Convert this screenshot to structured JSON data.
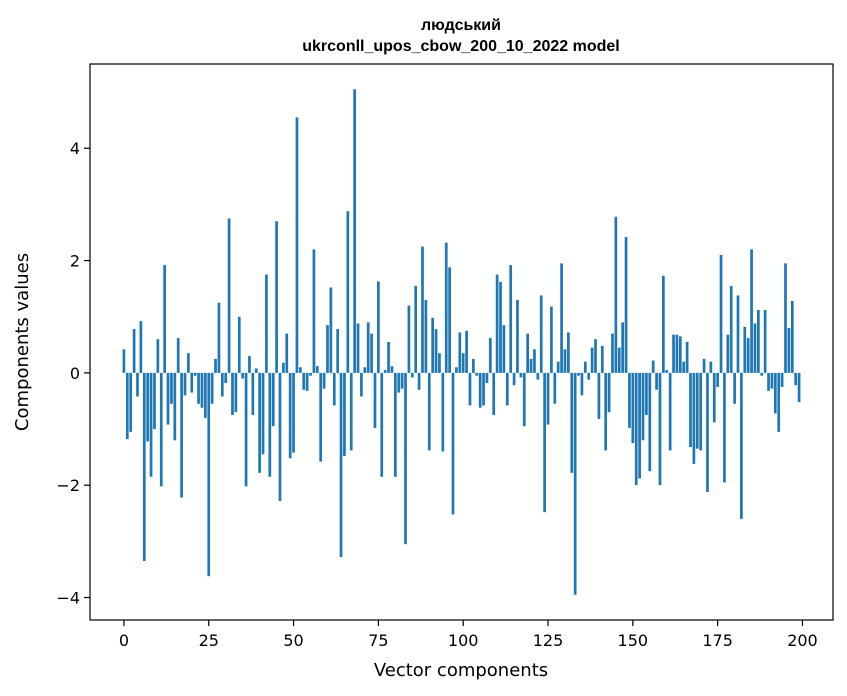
{
  "chart_data": {
    "type": "bar",
    "title_line1": "людський",
    "title_line2": "ukrconll_upos_cbow_200_10_2022 model",
    "xlabel": "Vector components",
    "ylabel": "Components values",
    "xlim": [
      -10,
      209
    ],
    "ylim": [
      -4.4,
      5.5
    ],
    "xticks": [
      0,
      25,
      50,
      75,
      100,
      125,
      150,
      175,
      200
    ],
    "xtick_labels": [
      "0",
      "25",
      "50",
      "75",
      "100",
      "125",
      "150",
      "175",
      "200"
    ],
    "yticks": [
      -4,
      -2,
      0,
      2,
      4
    ],
    "ytick_labels": [
      "−4",
      "−2",
      "0",
      "2",
      "4"
    ],
    "bar_color": "#1f77b4",
    "x": [
      0,
      1,
      2,
      3,
      4,
      5,
      6,
      7,
      8,
      9,
      10,
      11,
      12,
      13,
      14,
      15,
      16,
      17,
      18,
      19,
      20,
      21,
      22,
      23,
      24,
      25,
      26,
      27,
      28,
      29,
      30,
      31,
      32,
      33,
      34,
      35,
      36,
      37,
      38,
      39,
      40,
      41,
      42,
      43,
      44,
      45,
      46,
      47,
      48,
      49,
      50,
      51,
      52,
      53,
      54,
      55,
      56,
      57,
      58,
      59,
      60,
      61,
      62,
      63,
      64,
      65,
      66,
      67,
      68,
      69,
      70,
      71,
      72,
      73,
      74,
      75,
      76,
      77,
      78,
      79,
      80,
      81,
      82,
      83,
      84,
      85,
      86,
      87,
      88,
      89,
      90,
      91,
      92,
      93,
      94,
      95,
      96,
      97,
      98,
      99,
      100,
      101,
      102,
      103,
      104,
      105,
      106,
      107,
      108,
      109,
      110,
      111,
      112,
      113,
      114,
      115,
      116,
      117,
      118,
      119,
      120,
      121,
      122,
      123,
      124,
      125,
      126,
      127,
      128,
      129,
      130,
      131,
      132,
      133,
      134,
      135,
      136,
      137,
      138,
      139,
      140,
      141,
      142,
      143,
      144,
      145,
      146,
      147,
      148,
      149,
      150,
      151,
      152,
      153,
      154,
      155,
      156,
      157,
      158,
      159,
      160,
      161,
      162,
      163,
      164,
      165,
      166,
      167,
      168,
      169,
      170,
      171,
      172,
      173,
      174,
      175,
      176,
      177,
      178,
      179,
      180,
      181,
      182,
      183,
      184,
      185,
      186,
      187,
      188,
      189,
      190,
      191,
      192,
      193,
      194,
      195,
      196,
      197,
      198,
      199
    ],
    "values": [
      0.42,
      -1.18,
      -1.05,
      0.78,
      -0.42,
      0.92,
      -3.35,
      -1.22,
      -1.85,
      -1.0,
      0.6,
      -2.02,
      1.92,
      -0.92,
      -0.55,
      -1.2,
      0.62,
      -2.22,
      -0.4,
      0.35,
      -0.35,
      -0.05,
      -0.55,
      -0.62,
      -0.8,
      -3.62,
      -0.55,
      0.25,
      1.25,
      -0.42,
      -0.18,
      2.75,
      -0.75,
      -0.7,
      1.0,
      -0.1,
      -2.02,
      0.3,
      -0.75,
      0.08,
      -1.78,
      -1.45,
      1.75,
      -1.85,
      -0.95,
      2.7,
      -2.28,
      0.18,
      0.7,
      -1.52,
      -1.42,
      4.55,
      0.1,
      -0.3,
      -0.32,
      -0.05,
      2.2,
      0.12,
      -1.58,
      -0.28,
      0.85,
      1.52,
      -0.58,
      0.78,
      -3.28,
      -1.48,
      2.88,
      -1.38,
      5.05,
      0.88,
      -0.42,
      0.1,
      0.9,
      0.7,
      -0.98,
      1.63,
      -1.85,
      0.05,
      0.55,
      0.12,
      -1.85,
      -0.35,
      -0.28,
      -3.05,
      1.2,
      -0.08,
      1.55,
      -0.3,
      2.25,
      1.3,
      -1.38,
      0.98,
      0.78,
      0.35,
      -1.4,
      2.32,
      1.88,
      -2.52,
      0.1,
      0.72,
      0.35,
      0.75,
      -0.58,
      0.25,
      -0.05,
      -0.62,
      -0.58,
      -0.18,
      0.62,
      -0.75,
      1.75,
      1.62,
      0.85,
      -0.58,
      1.92,
      -0.22,
      1.3,
      -0.08,
      -0.95,
      0.7,
      0.25,
      0.42,
      -0.12,
      1.38,
      -2.48,
      -0.92,
      1.18,
      -0.55,
      0.2,
      1.95,
      0.42,
      0.72,
      -1.78,
      -3.95,
      -0.05,
      -0.4,
      0.2,
      -0.12,
      0.45,
      0.6,
      -0.82,
      0.48,
      -1.38,
      -0.7,
      0.7,
      2.78,
      0.45,
      0.9,
      2.42,
      -0.98,
      -1.25,
      -2.0,
      -1.88,
      -1.2,
      -0.75,
      -1.75,
      0.22,
      -0.3,
      -2.0,
      1.73,
      0.05,
      -1.38,
      0.68,
      0.68,
      0.65,
      0.2,
      0.55,
      -1.32,
      -1.62,
      -1.35,
      -1.38,
      0.25,
      -2.12,
      0.2,
      -0.88,
      -0.25,
      2.1,
      -1.95,
      0.68,
      1.55,
      -0.55,
      1.38,
      -2.6,
      0.82,
      0.62,
      2.2,
      0.88,
      1.12,
      -0.05,
      1.12,
      -0.32,
      -0.28,
      -0.72,
      -1.05,
      -0.25,
      1.95,
      0.8,
      1.28,
      -0.22,
      -0.52
    ]
  }
}
